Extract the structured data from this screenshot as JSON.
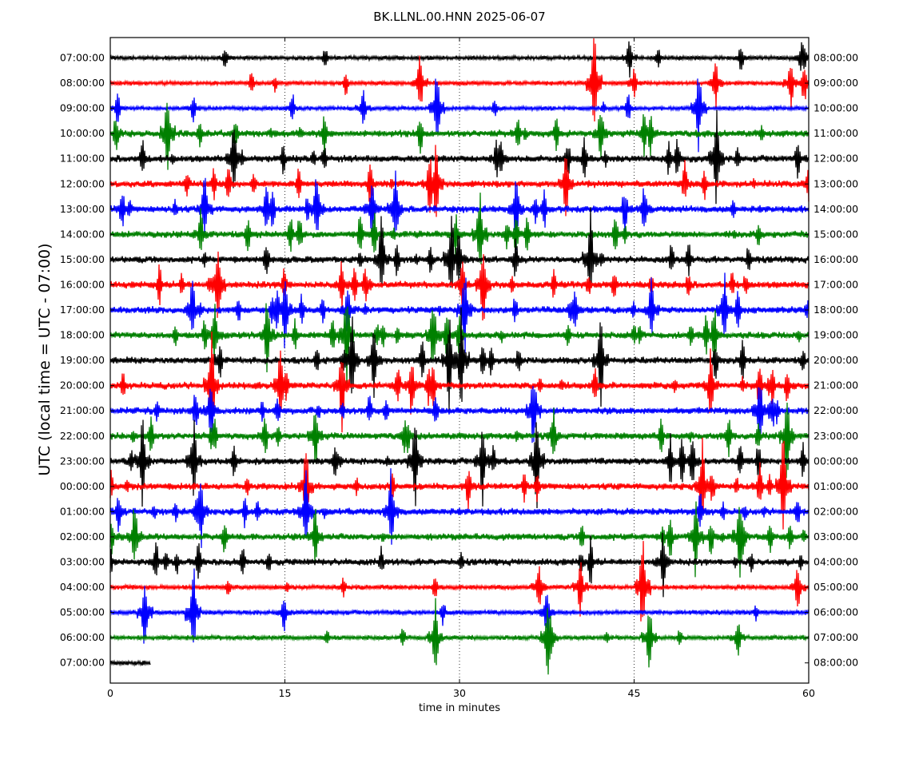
{
  "chart_data": {
    "type": "line",
    "title": "BK.LLNL.00.HNN 2025-06-07",
    "xlabel": "time in minutes",
    "ylabel": "UTC (local time = UTC - 07:00)",
    "x_ticks": [
      0,
      15,
      30,
      45,
      60
    ],
    "xlim": [
      0,
      60
    ],
    "left_labels": [
      "07:00:00",
      "08:00:00",
      "09:00:00",
      "10:00:00",
      "11:00:00",
      "12:00:00",
      "13:00:00",
      "14:00:00",
      "15:00:00",
      "16:00:00",
      "17:00:00",
      "18:00:00",
      "19:00:00",
      "20:00:00",
      "21:00:00",
      "22:00:00",
      "23:00:00",
      "00:00:00",
      "01:00:00",
      "02:00:00",
      "03:00:00",
      "04:00:00",
      "05:00:00",
      "06:00:00",
      "07:00:00"
    ],
    "right_labels": [
      "08:00:00",
      "09:00:00",
      "10:00:00",
      "11:00:00",
      "12:00:00",
      "13:00:00",
      "14:00:00",
      "15:00:00",
      "16:00:00",
      "17:00:00",
      "18:00:00",
      "19:00:00",
      "20:00:00",
      "21:00:00",
      "22:00:00",
      "23:00:00",
      "00:00:00",
      "01:00:00",
      "02:00:00",
      "03:00:00",
      "04:00:00",
      "05:00:00",
      "06:00:00",
      "07:00:00",
      "08:00:00"
    ],
    "colors": [
      "#000000",
      "#ff0000",
      "#0000ff",
      "#008000"
    ],
    "grid": "vertical dotted lines at 15, 30, 45",
    "last_trace_end_minute": 3.5
  }
}
